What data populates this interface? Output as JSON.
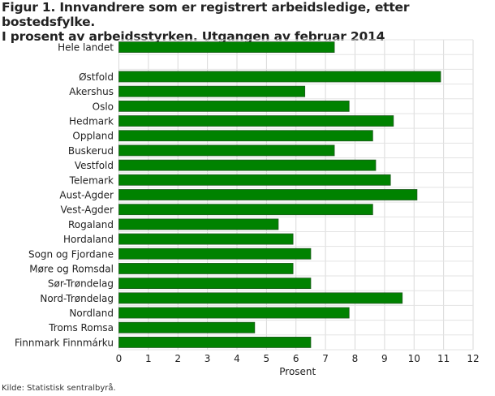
{
  "chart_data": {
    "type": "bar",
    "orientation": "horizontal",
    "title_line1": "Figur 1. Innvandrere som er registrert arbeidsledige, etter bostedsfylke.",
    "title_line2": "I prosent av arbeidsstyrken. Utgangen av februar 2014",
    "categories": [
      "Hele landet",
      "",
      "Østfold",
      "Akershus",
      "Oslo",
      "Hedmark",
      "Oppland",
      "Buskerud",
      "Vestfold",
      "Telemark",
      "Aust-Agder",
      "Vest-Agder",
      "Rogaland",
      "Hordaland",
      "Sogn og Fjordane",
      "Møre og Romsdal",
      "Sør-Trøndelag",
      "Nord-Trøndelag",
      "Nordland",
      "Troms Romsa",
      "Finnmark Finnmárku"
    ],
    "values": [
      7.3,
      null,
      10.9,
      6.3,
      7.8,
      9.3,
      8.6,
      7.3,
      8.7,
      9.2,
      10.1,
      8.6,
      5.4,
      5.9,
      6.5,
      5.9,
      6.5,
      9.6,
      7.8,
      4.6,
      6.5
    ],
    "xlabel": "Prosent",
    "xlim": [
      0,
      12
    ],
    "xticks": [
      "0",
      "1",
      "2",
      "3",
      "4",
      "5",
      "6",
      "7",
      "8",
      "9",
      "10",
      "11",
      "12"
    ],
    "grid": true,
    "bar_color": "#008200",
    "source": "Kilde: Statistisk sentralbyrå."
  }
}
